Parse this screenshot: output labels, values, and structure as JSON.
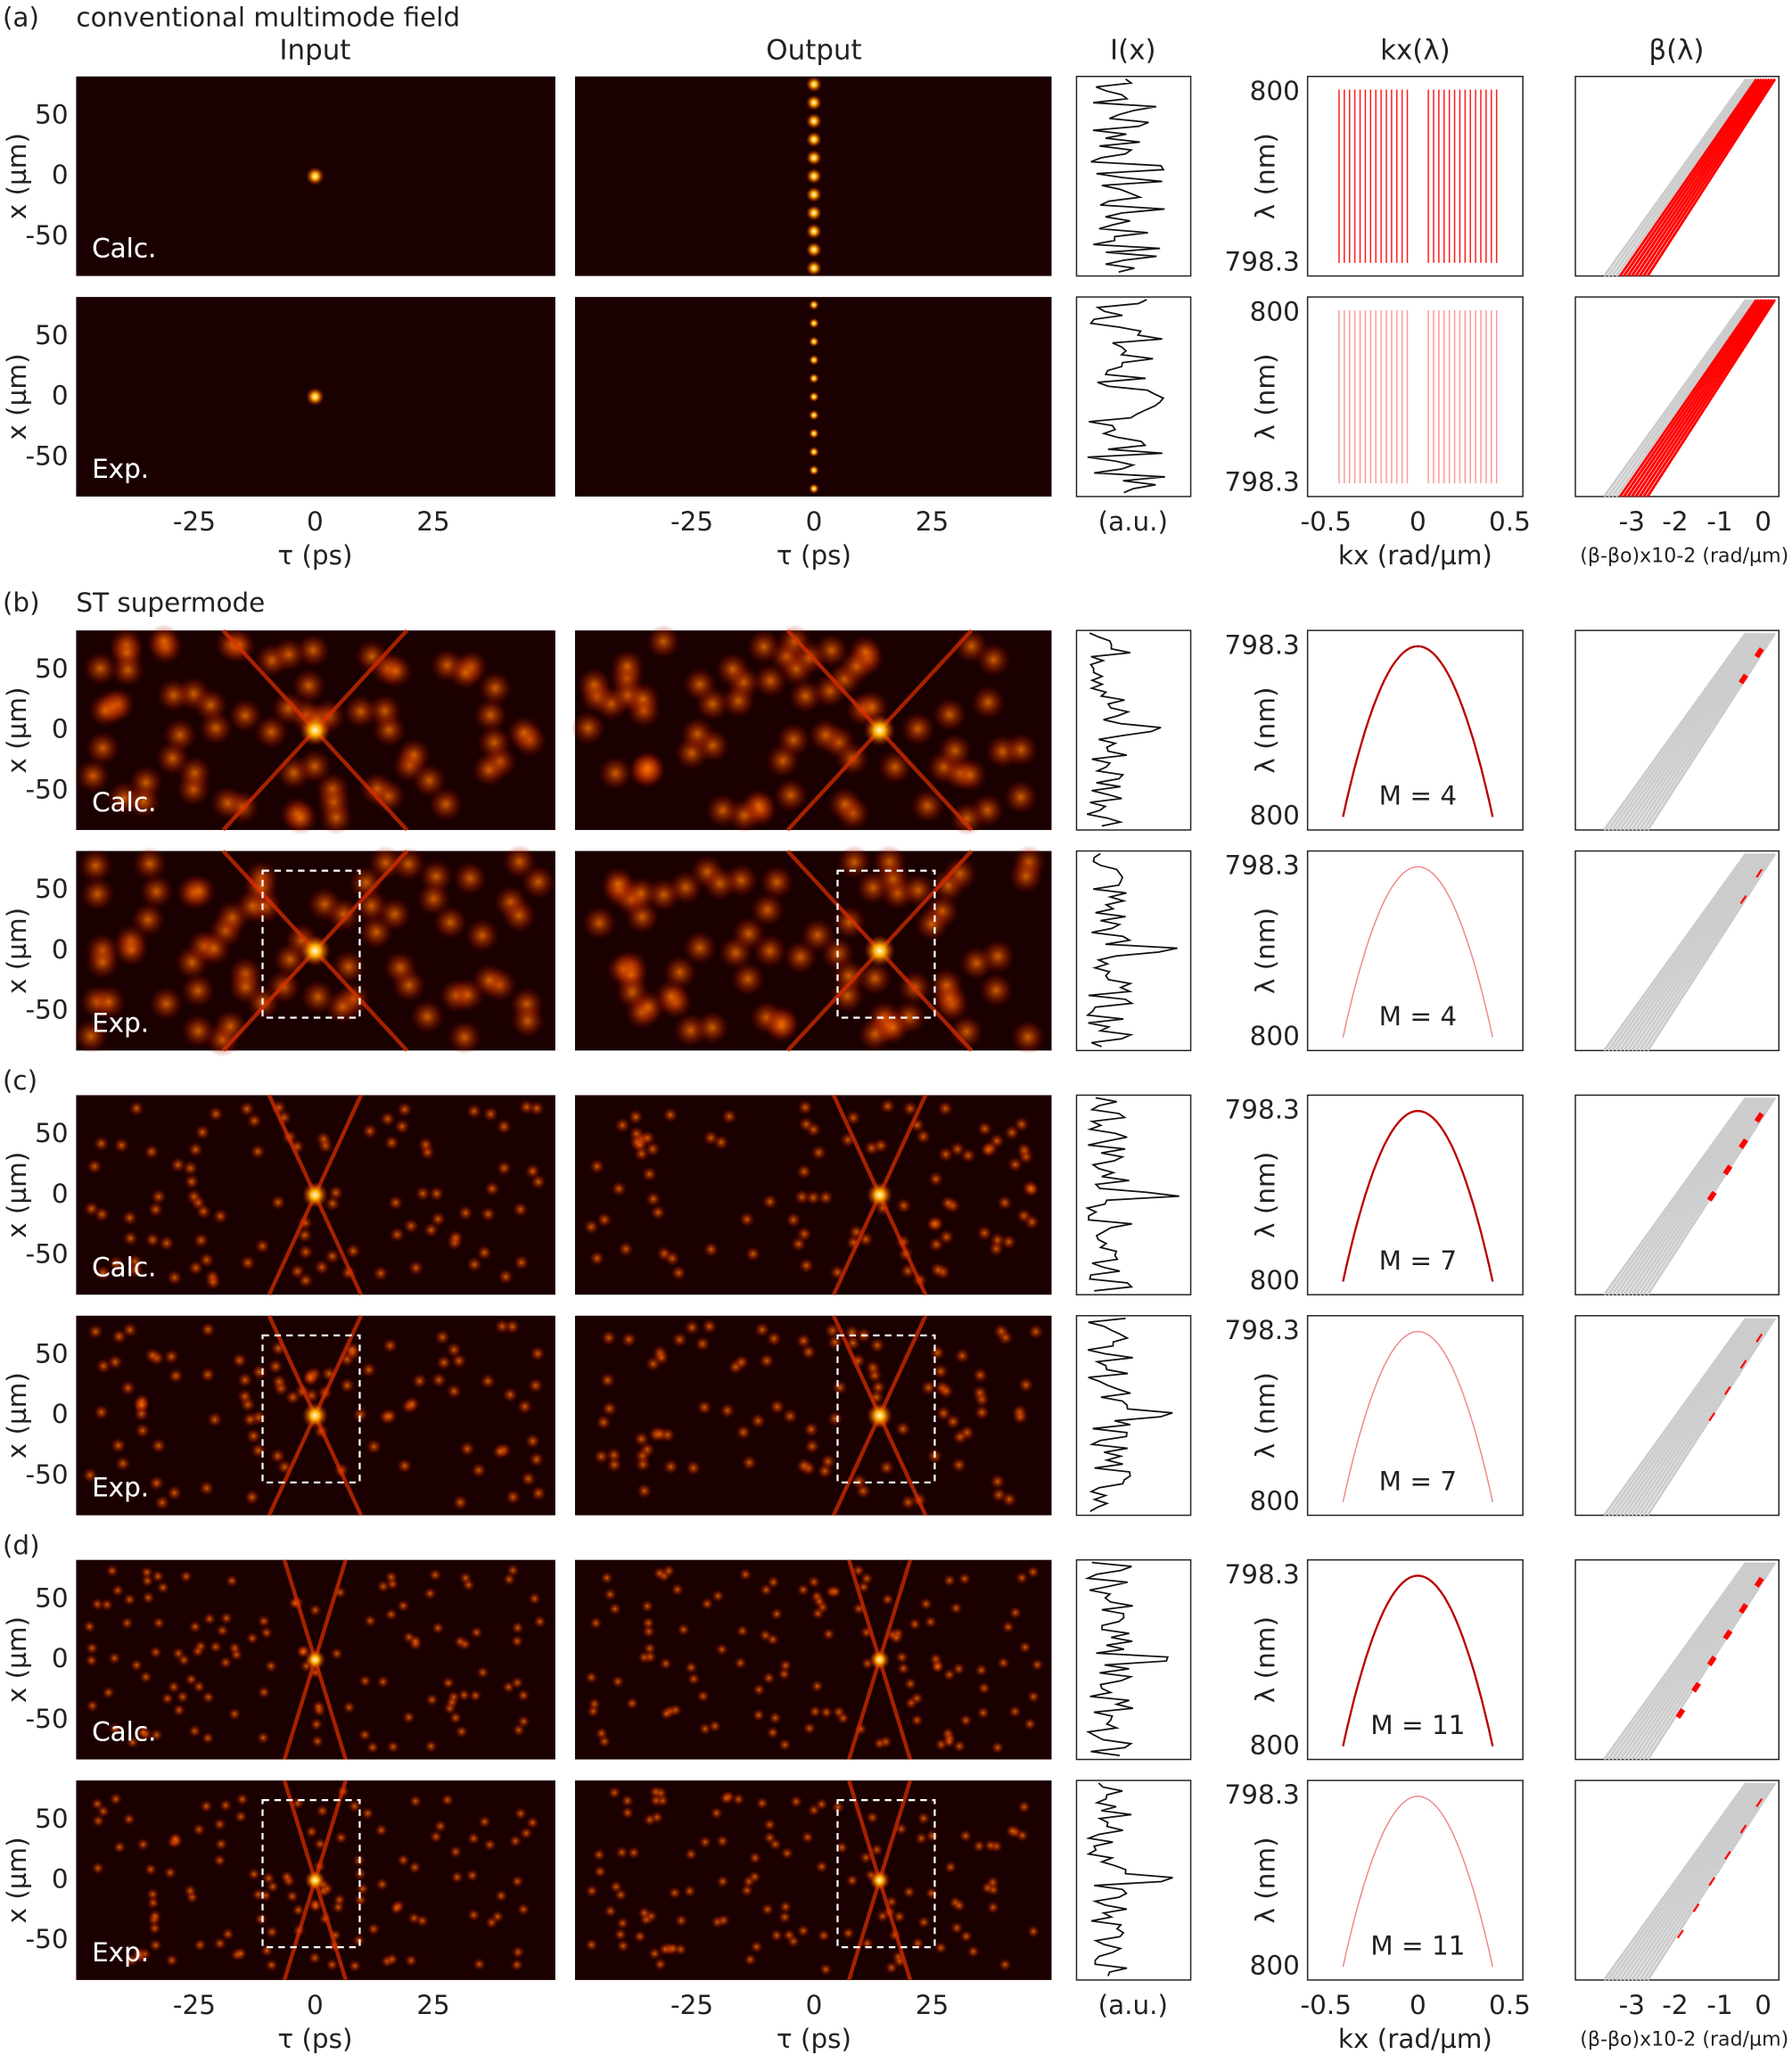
{
  "panels": [
    {
      "label": "(a)",
      "title": "conventional multimode field"
    },
    {
      "label": "(b)",
      "title": "ST supermode"
    },
    {
      "label": "(c)"
    },
    {
      "label": "(d)"
    }
  ],
  "column_headers": [
    "Input",
    "Output",
    "I(x)",
    "kx(λ)",
    "β(λ)"
  ],
  "row_labels": [
    "Calc.",
    "Exp."
  ],
  "x_axis": {
    "label": "x (µm)",
    "ticks": [
      "50",
      "0",
      "-50"
    ]
  },
  "tau_axis": {
    "label": "τ (ps)",
    "ticks": [
      "-25",
      "0",
      "25"
    ]
  },
  "intensity_axis": {
    "label": "(a.u.)"
  },
  "lambda_axis": {
    "label": "λ (nm)",
    "ticks": [
      "800",
      "798.3"
    ]
  },
  "kx_axis": {
    "label": "kx (rad/µm)",
    "ticks": [
      "-0.5",
      "0",
      "0.5"
    ]
  },
  "beta_axis": {
    "label": "(β-βo)x10-2 (rad/µm)",
    "ticks": [
      "-3",
      "-2",
      "-1",
      "0"
    ]
  },
  "mode_labels": [
    "M = 4",
    "M = 4",
    "M = 7",
    "M = 7",
    "M = 11",
    "M = 11"
  ]
}
